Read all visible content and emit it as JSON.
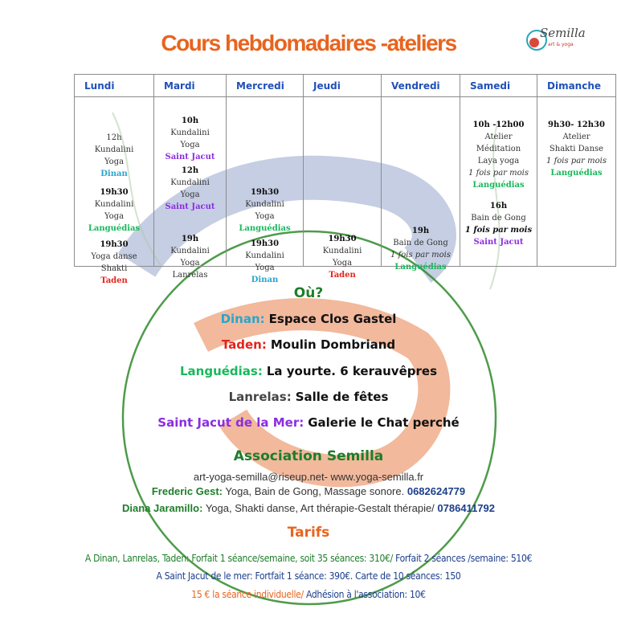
{
  "title": "Cours hebdomadaires -ateliers",
  "logo": {
    "text": "Semilla",
    "sub": "art & yoga"
  },
  "colors": {
    "Dinan": "#27a6cf",
    "Taden": "#e3231b",
    "Languédias": "#18b85a",
    "Saint Jacut": "#8b2ee0",
    "Lanrelas": "#444444",
    "days": "#2050b8",
    "title": "#e8641e",
    "green": "#1e7d2a",
    "navy": "#1d3f8c"
  },
  "schedule": {
    "days": [
      "Lundi",
      "Mardi",
      "Mercredi",
      "Jeudi",
      "Vendredi",
      "Samedi",
      "Dimanche"
    ],
    "cells": [
      [
        [
          {
            "t": "12h",
            "k": "plain"
          },
          {
            "t": "Kundalini",
            "k": "plain"
          },
          {
            "t": "Yoga",
            "k": "plain"
          },
          {
            "t": "Dinan",
            "k": "Dinan"
          }
        ],
        [
          {
            "t": "19h30",
            "k": "time"
          },
          {
            "t": "Kundalini",
            "k": "plain"
          },
          {
            "t": "Yoga",
            "k": "plain"
          },
          {
            "t": "Languédias",
            "k": "Languédias"
          }
        ],
        [
          {
            "t": "19h30",
            "k": "time"
          },
          {
            "t": "Yoga danse",
            "k": "plain"
          },
          {
            "t": "Shakti",
            "k": "plain"
          },
          {
            "t": "Taden",
            "k": "Taden"
          }
        ]
      ],
      [
        [
          {
            "t": "10h",
            "k": "time"
          },
          {
            "t": "Kundalini",
            "k": "plain"
          },
          {
            "t": "Yoga",
            "k": "plain"
          },
          {
            "t": "Saint Jacut",
            "k": "Saint Jacut"
          }
        ],
        [
          {
            "t": "12h",
            "k": "time"
          },
          {
            "t": "Kundalini",
            "k": "plain"
          },
          {
            "t": "Yoga",
            "k": "plain"
          },
          {
            "t": "Saint Jacut",
            "k": "Saint Jacut"
          }
        ],
        [
          {
            "t": "19h",
            "k": "time"
          },
          {
            "t": "Kundalini",
            "k": "plain"
          },
          {
            "t": "Yoga",
            "k": "plain"
          },
          {
            "t": "Lanrelas",
            "k": "plain"
          }
        ]
      ],
      [
        [
          {
            "t": "19h30",
            "k": "time"
          },
          {
            "t": "Kundalini",
            "k": "plain"
          },
          {
            "t": "Yoga",
            "k": "plain"
          },
          {
            "t": "Languédias",
            "k": "Languédias"
          }
        ],
        [
          {
            "t": "19h30",
            "k": "time"
          },
          {
            "t": "Kundalini",
            "k": "plain"
          },
          {
            "t": "Yoga",
            "k": "plain"
          },
          {
            "t": "Dinan",
            "k": "Dinan"
          }
        ]
      ],
      [
        [
          {
            "t": "19h30",
            "k": "time"
          },
          {
            "t": "Kundalini",
            "k": "plain"
          },
          {
            "t": "Yoga",
            "k": "plain"
          },
          {
            "t": "Taden",
            "k": "Taden"
          }
        ]
      ],
      [
        [
          {
            "t": "19h",
            "k": "time"
          },
          {
            "t": "Bain de Gong",
            "k": "plain"
          },
          {
            "t": "1 fois par mois",
            "k": "italic"
          },
          {
            "t": "Languédias",
            "k": "Languédias"
          }
        ]
      ],
      [
        [
          {
            "t": "10h -12h00",
            "k": "time"
          },
          {
            "t": "Atelier",
            "k": "plain"
          },
          {
            "t": "Méditation",
            "k": "plain"
          },
          {
            "t": "Laya yoga",
            "k": "plain"
          },
          {
            "t": "1 fois par mois",
            "k": "italic"
          },
          {
            "t": "Languédias",
            "k": "Languédias"
          }
        ],
        [
          {
            "t": "16h",
            "k": "time"
          },
          {
            "t": "Bain de Gong",
            "k": "plain"
          },
          {
            "t": "1 fois par mois",
            "k": "boldi"
          },
          {
            "t": "Saint Jacut",
            "k": "Saint Jacut"
          }
        ]
      ],
      [
        [
          {
            "t": "9h30- 12h30",
            "k": "time"
          },
          {
            "t": "Atelier",
            "k": "plain"
          },
          {
            "t": "Shakti Danse",
            "k": "plain"
          },
          {
            "t": "1 fois par mois",
            "k": "italic"
          },
          {
            "t": "Languédias",
            "k": "Languédias"
          }
        ]
      ]
    ]
  },
  "where": {
    "heading": "Où?",
    "places": [
      {
        "name": "Dinan:",
        "place": "Espace Clos Gastel",
        "key": "Dinan"
      },
      {
        "name": "Taden:",
        "place": "Moulin Dombriand",
        "key": "Taden"
      },
      {
        "name": "Languédias:",
        "place": "La yourte. 6 kerauvêpres",
        "key": "Languédias"
      },
      {
        "name": "Lanrelas:",
        "place": "Salle de fêtes",
        "key": "Lanrelas"
      },
      {
        "name": "Saint Jacut de la Mer:",
        "place": "Galerie le  Chat perché",
        "key": "Saint Jacut"
      }
    ]
  },
  "association": {
    "name": "Association Semilla",
    "contact": "art-yoga-semilla@riseup.net- www.yoga-semilla.fr",
    "people": [
      {
        "name": "Frederic Gest:",
        "desc": " Yoga, Bain de Gong, Massage sonore. ",
        "phone": "0682624779"
      },
      {
        "name": "Diana Jaramillo:",
        "desc": "  Yoga, Shakti danse, Art thérapie-Gestalt thérapie/ ",
        "phone": "0786411792"
      }
    ]
  },
  "tarifs": {
    "heading": "Tarifs",
    "line1a": "A Dinan, Lanrelas, Taden:  Forfait  1 séance/semaine, soit 35 séances: 310€/ ",
    "line1b": "Forfait 2 séances /semaine: 510€",
    "line2": "A Saint Jacut de le mer: Fortfait 1 séance: 390€. Carte de 10 séances: 150",
    "line3a": "15 € la séance individuelle/ ",
    "line3b": "Adhésion à l'association: 10€"
  }
}
